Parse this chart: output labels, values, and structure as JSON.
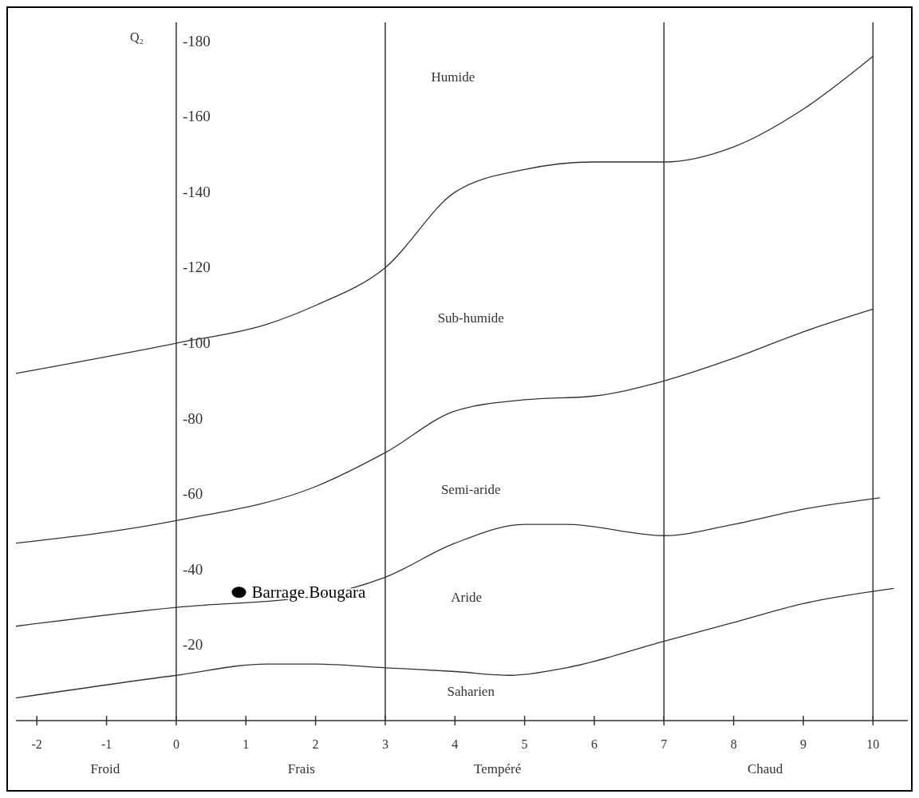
{
  "chart_data": {
    "type": "line",
    "ylabel": "Q₂",
    "xlim": [
      -2.3,
      10.5
    ],
    "ylim": [
      0,
      -185
    ],
    "xticks": [
      -2,
      -1,
      0,
      1,
      2,
      3,
      4,
      5,
      6,
      7,
      8,
      9,
      10
    ],
    "yticks": [
      -20,
      -40,
      -60,
      -80,
      -100,
      -120,
      -140,
      -160,
      -180
    ],
    "grid": false,
    "line_style": "solid",
    "series": [
      {
        "color": "#333333",
        "x": [
          -2.3,
          0,
          1.3,
          2,
          3,
          4,
          5,
          6,
          7,
          8,
          9,
          10
        ],
        "values": [
          -92,
          -100,
          -105,
          -110,
          -120,
          -140,
          -146,
          -148,
          -148,
          -152,
          -162,
          -176
        ]
      },
      {
        "color": "#333333",
        "x": [
          -2.3,
          0,
          2,
          3,
          4,
          5,
          6,
          7,
          8,
          9,
          10
        ],
        "values": [
          -47,
          -53,
          -62,
          -71,
          -82,
          -85,
          -86,
          -90,
          -96,
          -103,
          -109
        ]
      },
      {
        "color": "#333333",
        "x": [
          -2.3,
          0,
          2,
          3,
          4,
          5,
          5.6,
          7,
          8,
          9,
          10.1
        ],
        "values": [
          -25,
          -30,
          -33,
          -38,
          -47,
          -52,
          -52,
          -49,
          -52,
          -56,
          -59
        ]
      },
      {
        "color": "#333333",
        "x": [
          -2.3,
          0,
          1.3,
          2,
          3,
          4,
          4.8,
          5.6,
          7,
          8,
          9,
          10.3
        ],
        "values": [
          -6,
          -12,
          -15,
          -15,
          -14,
          -13,
          -12,
          -14,
          -21,
          -26,
          -31,
          -35
        ]
      },
      {
        "type": "scatter",
        "name": "Barrage Bougara",
        "color": "#000000",
        "marker": "circle",
        "x": [
          0.9
        ],
        "values": [
          -34
        ]
      }
    ],
    "ref_lines": [
      {
        "axis": "x",
        "value": 0,
        "color": "#333333"
      },
      {
        "axis": "x",
        "value": 3,
        "color": "#333333"
      },
      {
        "axis": "x",
        "value": 7,
        "color": "#333333"
      },
      {
        "axis": "x",
        "value": 10,
        "color": "#333333"
      }
    ],
    "annotations": [
      "Humide",
      "Sub-humide",
      "Semi-aride",
      "Aride",
      "Saharien",
      "Froid",
      "Frais",
      "Tempéré",
      "Chaud"
    ]
  }
}
